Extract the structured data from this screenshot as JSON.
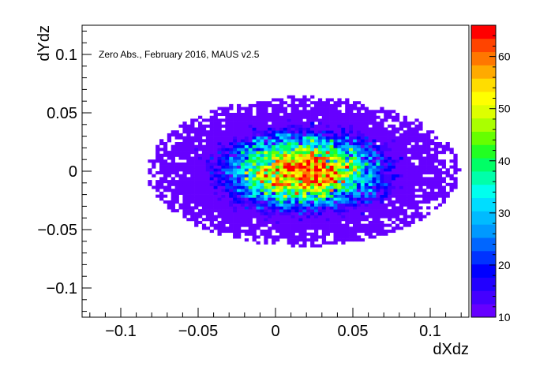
{
  "chart_data": {
    "type": "heatmap",
    "annotation": "Zero Abs., February 2016, MAUS v2.5",
    "xlabel": "dXdz",
    "ylabel": "dYdz",
    "xlim": [
      -0.125,
      0.125
    ],
    "ylim": [
      -0.125,
      0.125
    ],
    "x_ticks": [
      -0.1,
      -0.05,
      0,
      0.05,
      0.1
    ],
    "x_tick_labels": [
      "−0.1",
      "−0.05",
      "0",
      "0.05",
      "0.1"
    ],
    "y_ticks": [
      -0.1,
      -0.05,
      0,
      0.05,
      0.1
    ],
    "y_tick_labels": [
      "−0.1",
      "−0.05",
      "0",
      "0.05",
      "0.1"
    ],
    "bins": {
      "nx": 100,
      "ny": 100
    },
    "distribution": {
      "mean_x": 0.018,
      "mean_y": 0.0,
      "sigma_x": 0.033,
      "sigma_y": 0.021,
      "peak_count": 64
    },
    "colorbar": {
      "range": [
        10,
        66
      ],
      "ticks": [
        10,
        20,
        30,
        40,
        50,
        60
      ],
      "tick_labels": [
        "10",
        "20",
        "30",
        "40",
        "50",
        "60"
      ],
      "colors": [
        "#6600ff",
        "#4400ff",
        "#2200ff",
        "#0000ff",
        "#0033ff",
        "#0066ff",
        "#0099ff",
        "#00bbff",
        "#00ddff",
        "#00ffee",
        "#00ffaa",
        "#00ff66",
        "#22ff22",
        "#66ff00",
        "#aaff00",
        "#ddff00",
        "#ffff00",
        "#ffdd00",
        "#ffaa00",
        "#ff7700",
        "#ff4400",
        "#ff0000"
      ]
    }
  }
}
